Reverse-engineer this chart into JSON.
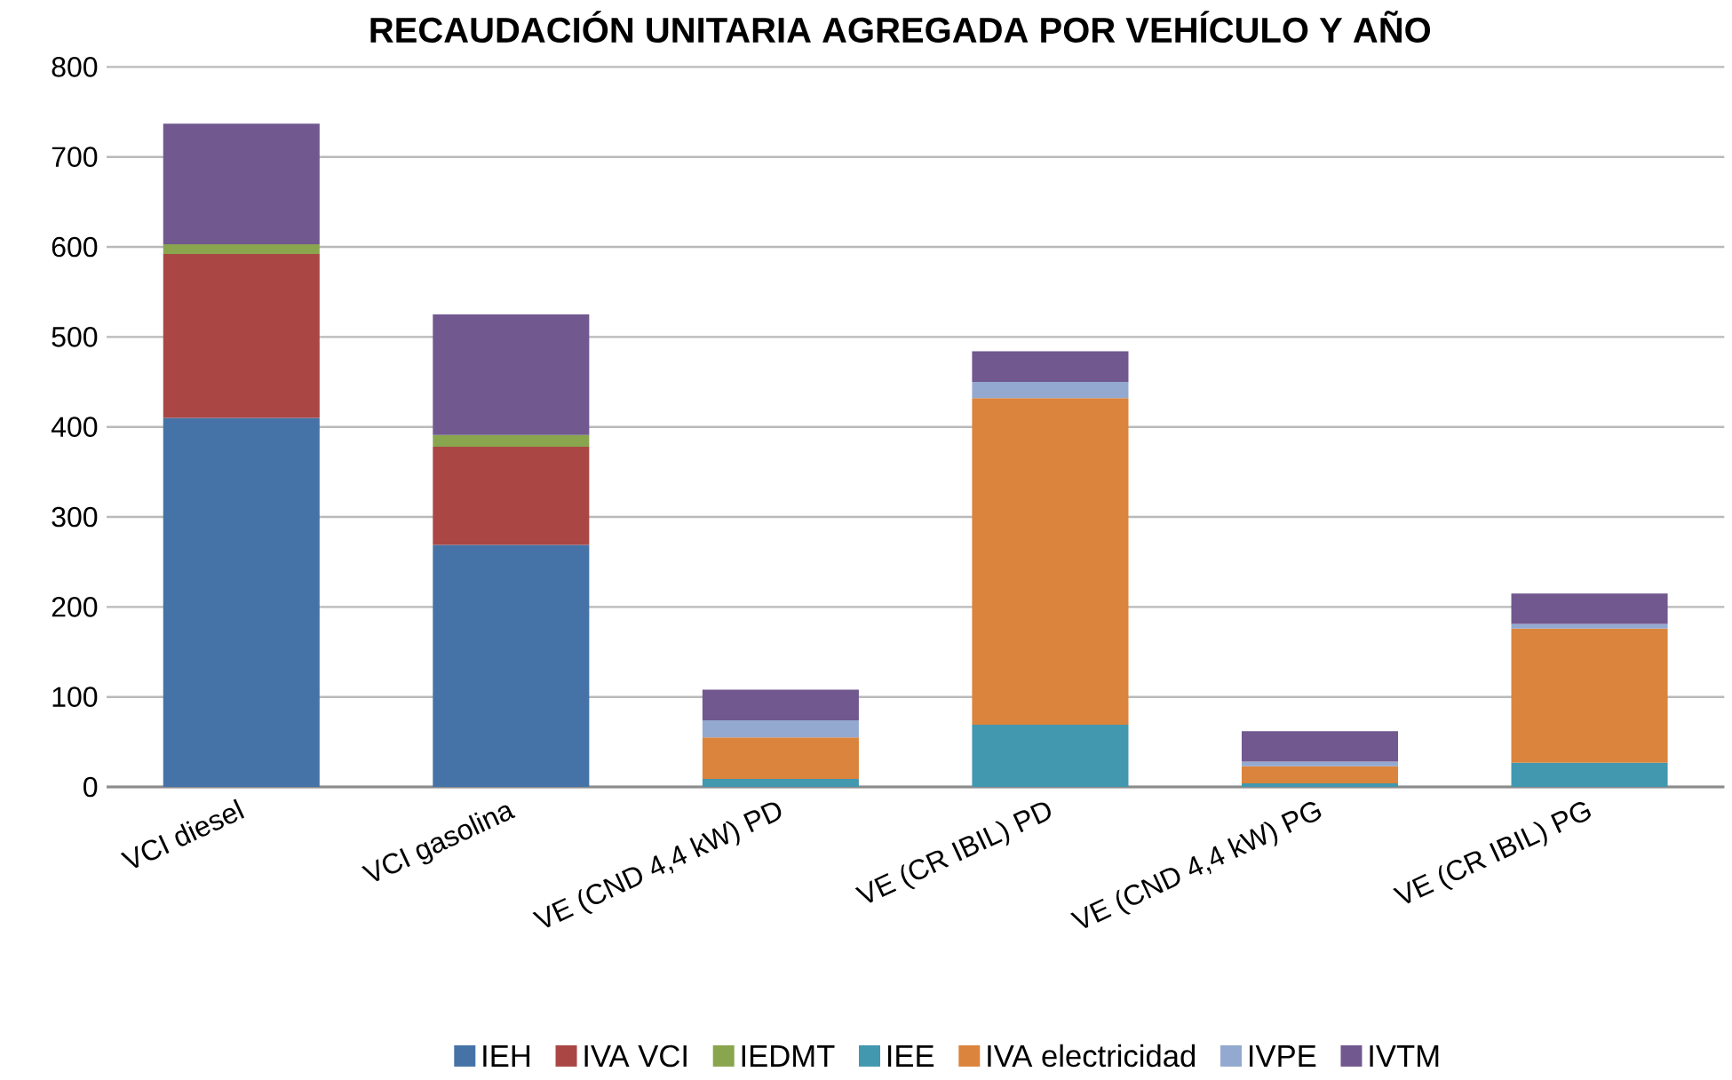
{
  "chart_data": {
    "type": "bar",
    "title": "RECAUDACIÓN UNITARIA AGREGADA POR VEHÍCULO Y AÑO",
    "categories": [
      "VCI diesel",
      "VCI gasolina",
      "VE  (CND  4,4 kW) PD",
      "VE (CR IBIL) PD",
      "VE  (CND  4,4 kW) PG",
      "VE (CR IBIL) PG"
    ],
    "stacked": true,
    "ylim": [
      0,
      800
    ],
    "yticks": [
      0,
      100,
      200,
      300,
      400,
      500,
      600,
      700,
      800
    ],
    "grid": "y",
    "legend": "bottom",
    "series": [
      {
        "name": "IEH",
        "color": "#4573a7",
        "values": [
          410,
          269,
          null,
          null,
          null,
          null
        ]
      },
      {
        "name": "IVA VCI",
        "color": "#aa4744",
        "values": [
          182,
          109,
          null,
          null,
          null,
          null
        ]
      },
      {
        "name": "IEDMT",
        "color": "#89a54e",
        "values": [
          11,
          13,
          null,
          null,
          null,
          null
        ]
      },
      {
        "name": "IEE",
        "color": "#4298af",
        "values": [
          null,
          null,
          9,
          69,
          4,
          27
        ]
      },
      {
        "name": "IVA electricidad",
        "color": "#db843d",
        "values": [
          null,
          null,
          46,
          363,
          19,
          149
        ]
      },
      {
        "name": "IVPE",
        "color": "#93a9cf",
        "values": [
          null,
          null,
          19,
          18,
          5,
          5
        ]
      },
      {
        "name": "IVTM",
        "color": "#71588f",
        "values": [
          134,
          134,
          34,
          34,
          34,
          34
        ]
      }
    ]
  }
}
